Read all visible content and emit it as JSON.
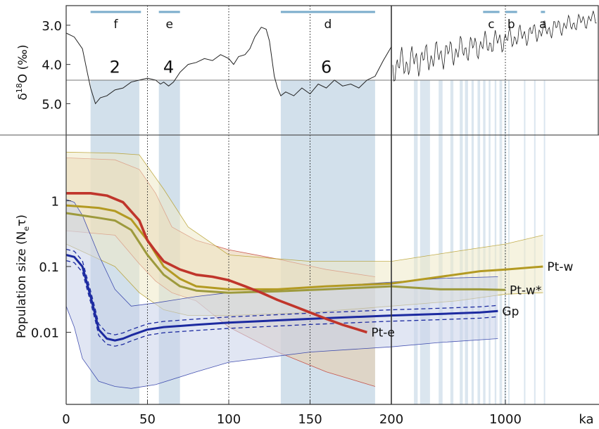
{
  "colors": {
    "band": "#c3d5e4",
    "bar": "#7aaccb",
    "frame": "#333333",
    "pt_e": "#c0352b",
    "pt_w": "#b39a22",
    "pt_w_star": "#9d9a3d",
    "gp": "#1c2aa0",
    "pt_e_fill": "#e8ccaa",
    "pt_w_fill": "#eeeac6",
    "gp_fill": "#c9d1ea"
  },
  "chart_data": [
    {
      "type": "line",
      "panel": "top",
      "ylabel": "δ18O (‰)",
      "ylabel_base": "δ",
      "ylabel_sup": "18",
      "ylabel_rest": "O (‰)",
      "yticks": [
        "3.0",
        "4.0",
        "5.0"
      ],
      "ylim": [
        2.5,
        5.8
      ],
      "y_inverted": true,
      "threshold": 4.4,
      "stages": [
        {
          "label": "2",
          "x": 30,
          "y": 4.05
        },
        {
          "label": "4",
          "x": 63,
          "y": 4.05
        },
        {
          "label": "6",
          "x": 160,
          "y": 4.05
        }
      ],
      "periods": [
        {
          "label": "f",
          "from": 15,
          "to": 46
        },
        {
          "label": "e",
          "from": 57,
          "to": 70
        },
        {
          "label": "d",
          "from": 132,
          "to": 190
        },
        {
          "label": "c",
          "from": 730,
          "to": 920
        },
        {
          "label": "b",
          "from": 1000,
          "to": 1180
        },
        {
          "label": "a",
          "from": 1650,
          "to": 1750
        }
      ],
      "series": [
        {
          "x": [
            0,
            5,
            10,
            13,
            15,
            18,
            21,
            25,
            30,
            35,
            40,
            45,
            50,
            55,
            58,
            60,
            63,
            66,
            70,
            75,
            80,
            85,
            90,
            95,
            100,
            103,
            106,
            110,
            113,
            116,
            120,
            123,
            125,
            128,
            130,
            132,
            135,
            140,
            145,
            150,
            155,
            160,
            165,
            170,
            175,
            180,
            185,
            190,
            195,
            200
          ],
          "y": [
            3.2,
            3.3,
            3.6,
            4.2,
            4.6,
            5.0,
            4.85,
            4.8,
            4.65,
            4.6,
            4.45,
            4.4,
            4.35,
            4.4,
            4.5,
            4.45,
            4.55,
            4.45,
            4.2,
            4.0,
            3.95,
            3.85,
            3.9,
            3.75,
            3.85,
            4.0,
            3.8,
            3.75,
            3.6,
            3.3,
            3.05,
            3.1,
            3.4,
            4.3,
            4.6,
            4.8,
            4.7,
            4.8,
            4.6,
            4.75,
            4.5,
            4.6,
            4.4,
            4.55,
            4.5,
            4.6,
            4.4,
            4.3,
            3.9,
            3.55
          ]
        }
      ],
      "x_bands": [
        [
          15,
          45
        ],
        [
          57,
          70
        ],
        [
          132,
          190
        ],
        [
          275,
          290
        ],
        [
          300,
          345
        ],
        [
          390,
          412
        ],
        [
          460,
          480
        ],
        [
          525,
          548
        ],
        [
          565,
          590
        ],
        [
          620,
          640
        ],
        [
          675,
          700
        ],
        [
          730,
          755
        ],
        [
          790,
          810
        ],
        [
          860,
          880
        ],
        [
          920,
          955
        ],
        [
          985,
          1010
        ],
        [
          1040,
          1055
        ],
        [
          1300,
          1320
        ],
        [
          1500,
          1520
        ],
        [
          1720,
          1740
        ]
      ],
      "dotted_verticals": [
        50,
        100,
        150,
        1000
      ]
    },
    {
      "type": "line",
      "panel": "bottom",
      "ylabel": "Population size (Neτ)",
      "ylabel_base": "Population size (N",
      "ylabel_sub": "e",
      "ylabel_end": "τ)",
      "yticks": [
        "1",
        "0.1",
        "0.01"
      ],
      "ylim": [
        0.0008,
        10
      ],
      "y_scale": "log",
      "xticks": [
        "0",
        "50",
        "100",
        "150",
        "200",
        "1000",
        "ka"
      ],
      "series": [
        {
          "name": "Pt-w",
          "color_key": "pt_w",
          "x": [
            0,
            20,
            30,
            40,
            50,
            60,
            70,
            80,
            100,
            130,
            160,
            200,
            400,
            700,
            1000,
            1300,
            1700
          ],
          "y": [
            0.85,
            0.78,
            0.7,
            0.52,
            0.25,
            0.1,
            0.065,
            0.05,
            0.045,
            0.045,
            0.05,
            0.055,
            0.07,
            0.085,
            0.09,
            0.095,
            0.1
          ]
        },
        {
          "name": "Pt-w*",
          "color_key": "pt_w_star",
          "x": [
            0,
            20,
            30,
            40,
            50,
            60,
            70,
            80,
            100,
            130,
            160,
            200,
            400,
            700,
            1000
          ],
          "y": [
            0.65,
            0.55,
            0.5,
            0.36,
            0.15,
            0.075,
            0.05,
            0.043,
            0.04,
            0.042,
            0.045,
            0.05,
            0.045,
            0.045,
            0.044
          ]
        },
        {
          "name": "Gp",
          "color_key": "gp",
          "x": [
            0,
            5,
            10,
            15,
            18,
            20,
            25,
            30,
            35,
            40,
            50,
            60,
            80,
            100,
            150,
            200,
            400,
            700,
            900
          ],
          "y": [
            0.15,
            0.14,
            0.1,
            0.035,
            0.018,
            0.011,
            0.008,
            0.0075,
            0.008,
            0.009,
            0.011,
            0.012,
            0.013,
            0.014,
            0.016,
            0.018,
            0.019,
            0.02,
            0.021
          ]
        },
        {
          "name": "Pt-e",
          "color_key": "pt_e",
          "x": [
            0,
            15,
            25,
            35,
            45,
            50,
            55,
            60,
            70,
            80,
            90,
            100,
            110,
            120,
            130,
            140,
            150,
            160,
            170,
            185
          ],
          "y": [
            1.3,
            1.3,
            1.2,
            0.95,
            0.5,
            0.25,
            0.17,
            0.12,
            0.09,
            0.075,
            0.07,
            0.062,
            0.05,
            0.04,
            0.031,
            0.025,
            0.02,
            0.016,
            0.013,
            0.01
          ]
        }
      ],
      "envelopes": [
        {
          "color_key": "pt_e",
          "fill_key": "pt_e_fill",
          "x": [
            0,
            30,
            45,
            55,
            65,
            80,
            100,
            130,
            160,
            190
          ],
          "upper": [
            4.5,
            4.2,
            3.0,
            1.3,
            0.4,
            0.25,
            0.18,
            0.13,
            0.09,
            0.07
          ],
          "lower": [
            0.35,
            0.3,
            0.11,
            0.06,
            0.04,
            0.03,
            0.012,
            0.005,
            0.0025,
            0.0015
          ]
        },
        {
          "color_key": "pt_w",
          "fill_key": "pt_w_fill",
          "x": [
            0,
            30,
            45,
            60,
            75,
            100,
            150,
            200,
            500,
            1000,
            1700
          ],
          "upper": [
            5.5,
            5.3,
            5.0,
            1.5,
            0.4,
            0.15,
            0.12,
            0.12,
            0.17,
            0.22,
            0.3
          ],
          "lower": [
            0.22,
            0.1,
            0.04,
            0.022,
            0.018,
            0.018,
            0.02,
            0.025,
            0.03,
            0.038,
            0.04
          ]
        },
        {
          "color_key": "gp",
          "fill_key": "gp_fill",
          "x": [
            0,
            5,
            10,
            20,
            30,
            40,
            55,
            80,
            100,
            150,
            200,
            400,
            900
          ],
          "upper": [
            1.05,
            0.95,
            0.6,
            0.15,
            0.045,
            0.025,
            0.028,
            0.035,
            0.04,
            0.048,
            0.058,
            0.066,
            0.07
          ],
          "lower": [
            0.025,
            0.012,
            0.004,
            0.0018,
            0.0015,
            0.0014,
            0.0016,
            0.0025,
            0.0035,
            0.005,
            0.006,
            0.007,
            0.008
          ]
        }
      ]
    }
  ]
}
